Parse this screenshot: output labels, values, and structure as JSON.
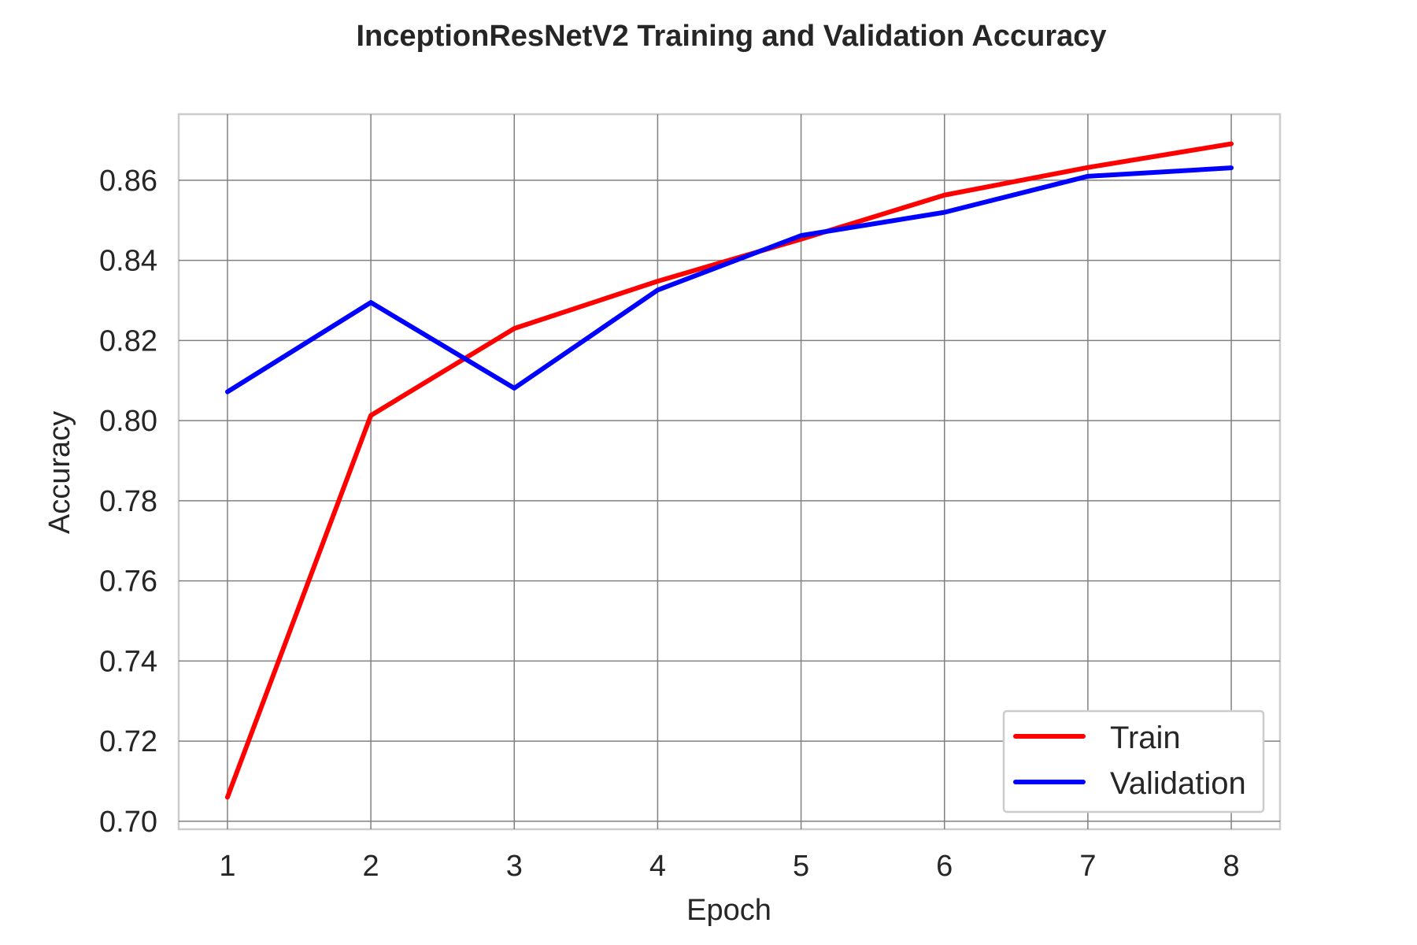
{
  "chart_data": {
    "type": "line",
    "title": "InceptionResNetV2 Training and Validation Accuracy",
    "xlabel": "Epoch",
    "ylabel": "Accuracy",
    "x": [
      1,
      2,
      3,
      4,
      5,
      6,
      7,
      8
    ],
    "xlim": [
      0.66,
      8.34
    ],
    "ylim": [
      0.698,
      0.8765
    ],
    "x_ticks": [
      "1",
      "2",
      "3",
      "4",
      "5",
      "6",
      "7",
      "8"
    ],
    "y_ticks": [
      "0.70",
      "0.72",
      "0.74",
      "0.76",
      "0.78",
      "0.80",
      "0.82",
      "0.84",
      "0.86"
    ],
    "grid": true,
    "legend_position": "lower-right",
    "series": [
      {
        "name": "Train",
        "color": "#ff0000",
        "values": [
          0.706,
          0.8013,
          0.823,
          0.8348,
          0.8453,
          0.8563,
          0.8632,
          0.8691
        ]
      },
      {
        "name": "Validation",
        "color": "#0000ff",
        "values": [
          0.8072,
          0.8295,
          0.8081,
          0.8326,
          0.8462,
          0.852,
          0.861,
          0.8631
        ]
      }
    ]
  }
}
